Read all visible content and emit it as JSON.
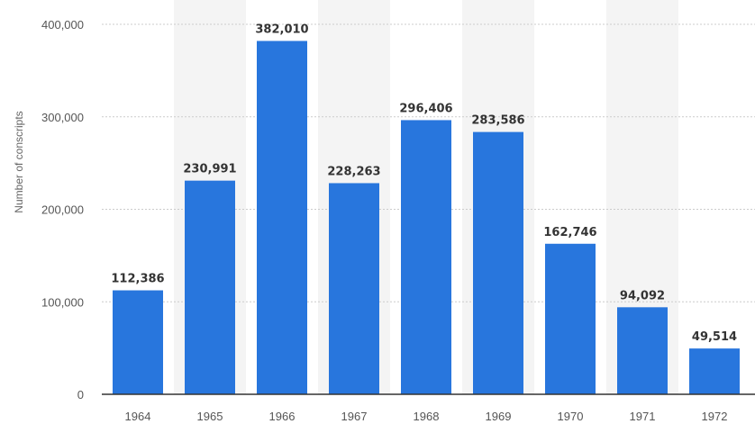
{
  "chart_data": {
    "type": "bar",
    "categories": [
      "1964",
      "1965",
      "1966",
      "1967",
      "1968",
      "1969",
      "1970",
      "1971",
      "1972"
    ],
    "values": [
      112386,
      230991,
      382010,
      228263,
      296406,
      283586,
      162746,
      94092,
      49514
    ],
    "value_labels": [
      "112,386",
      "230,991",
      "382,010",
      "228,263",
      "296,406",
      "283,586",
      "162,746",
      "94,092",
      "49,514"
    ],
    "ylabel": "Number of conscripts",
    "ylim": [
      0,
      400000
    ],
    "yticks": [
      0,
      100000,
      200000,
      300000,
      400000
    ],
    "ytick_labels": [
      "0",
      "100,000",
      "200,000",
      "300,000",
      "400,000"
    ],
    "grid": true,
    "alternating_column_shading": true,
    "colors": {
      "bar": "#2876dd",
      "shade": "#f4f4f4",
      "grid": "#cccccc",
      "axis": "#333333"
    }
  }
}
